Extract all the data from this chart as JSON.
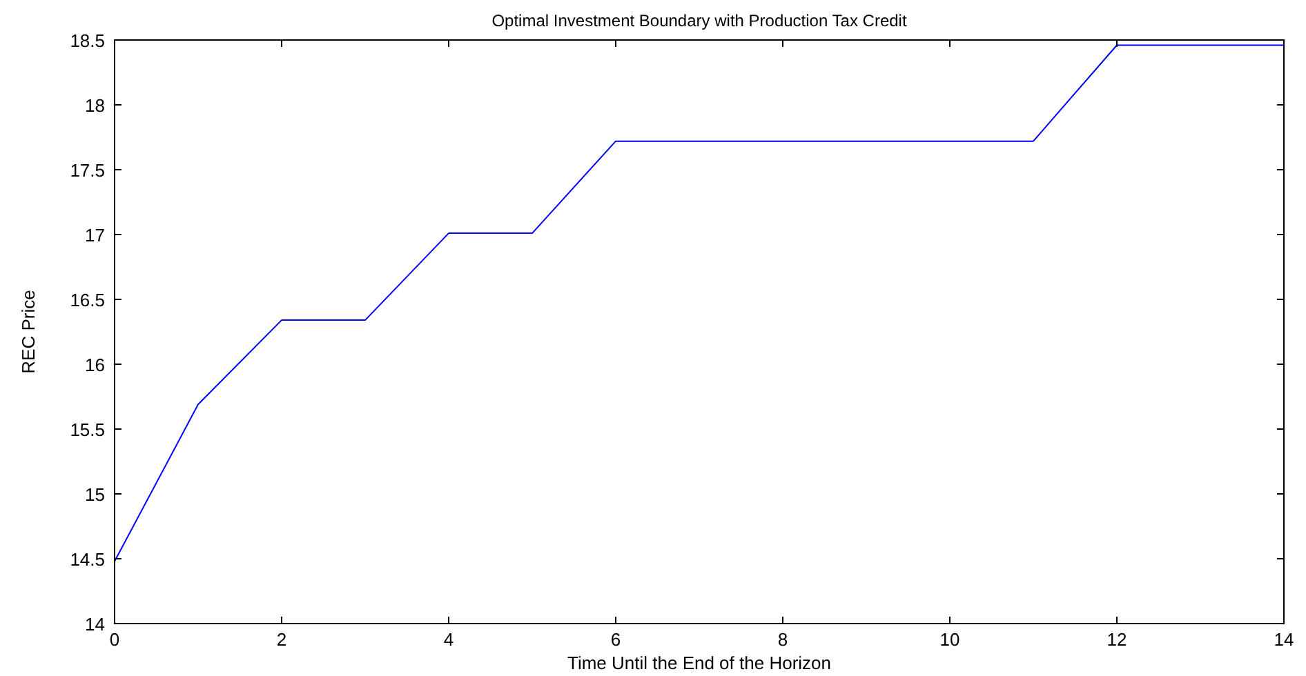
{
  "chart_data": {
    "type": "line",
    "title": "Optimal Investment Boundary with Production Tax Credit",
    "xlabel": "Time Until the End of the Horizon",
    "ylabel": "REC Price",
    "x": [
      0,
      1,
      2,
      3,
      4,
      5,
      6,
      7,
      8,
      9,
      10,
      11,
      12,
      13,
      14
    ],
    "series": [
      {
        "color": "#0000ff",
        "values": [
          14.48,
          15.69,
          16.34,
          16.34,
          17.01,
          17.01,
          17.72,
          17.72,
          17.72,
          17.72,
          17.72,
          17.72,
          18.46,
          18.46,
          18.46
        ]
      }
    ],
    "xlim": [
      0,
      14
    ],
    "xticks": [
      0,
      2,
      4,
      6,
      8,
      10,
      12,
      14
    ],
    "ylim": [
      14,
      18.5
    ],
    "yticks": [
      14,
      14.5,
      15,
      15.5,
      16,
      16.5,
      17,
      17.5,
      18,
      18.5
    ],
    "tick_labels": "xy"
  }
}
